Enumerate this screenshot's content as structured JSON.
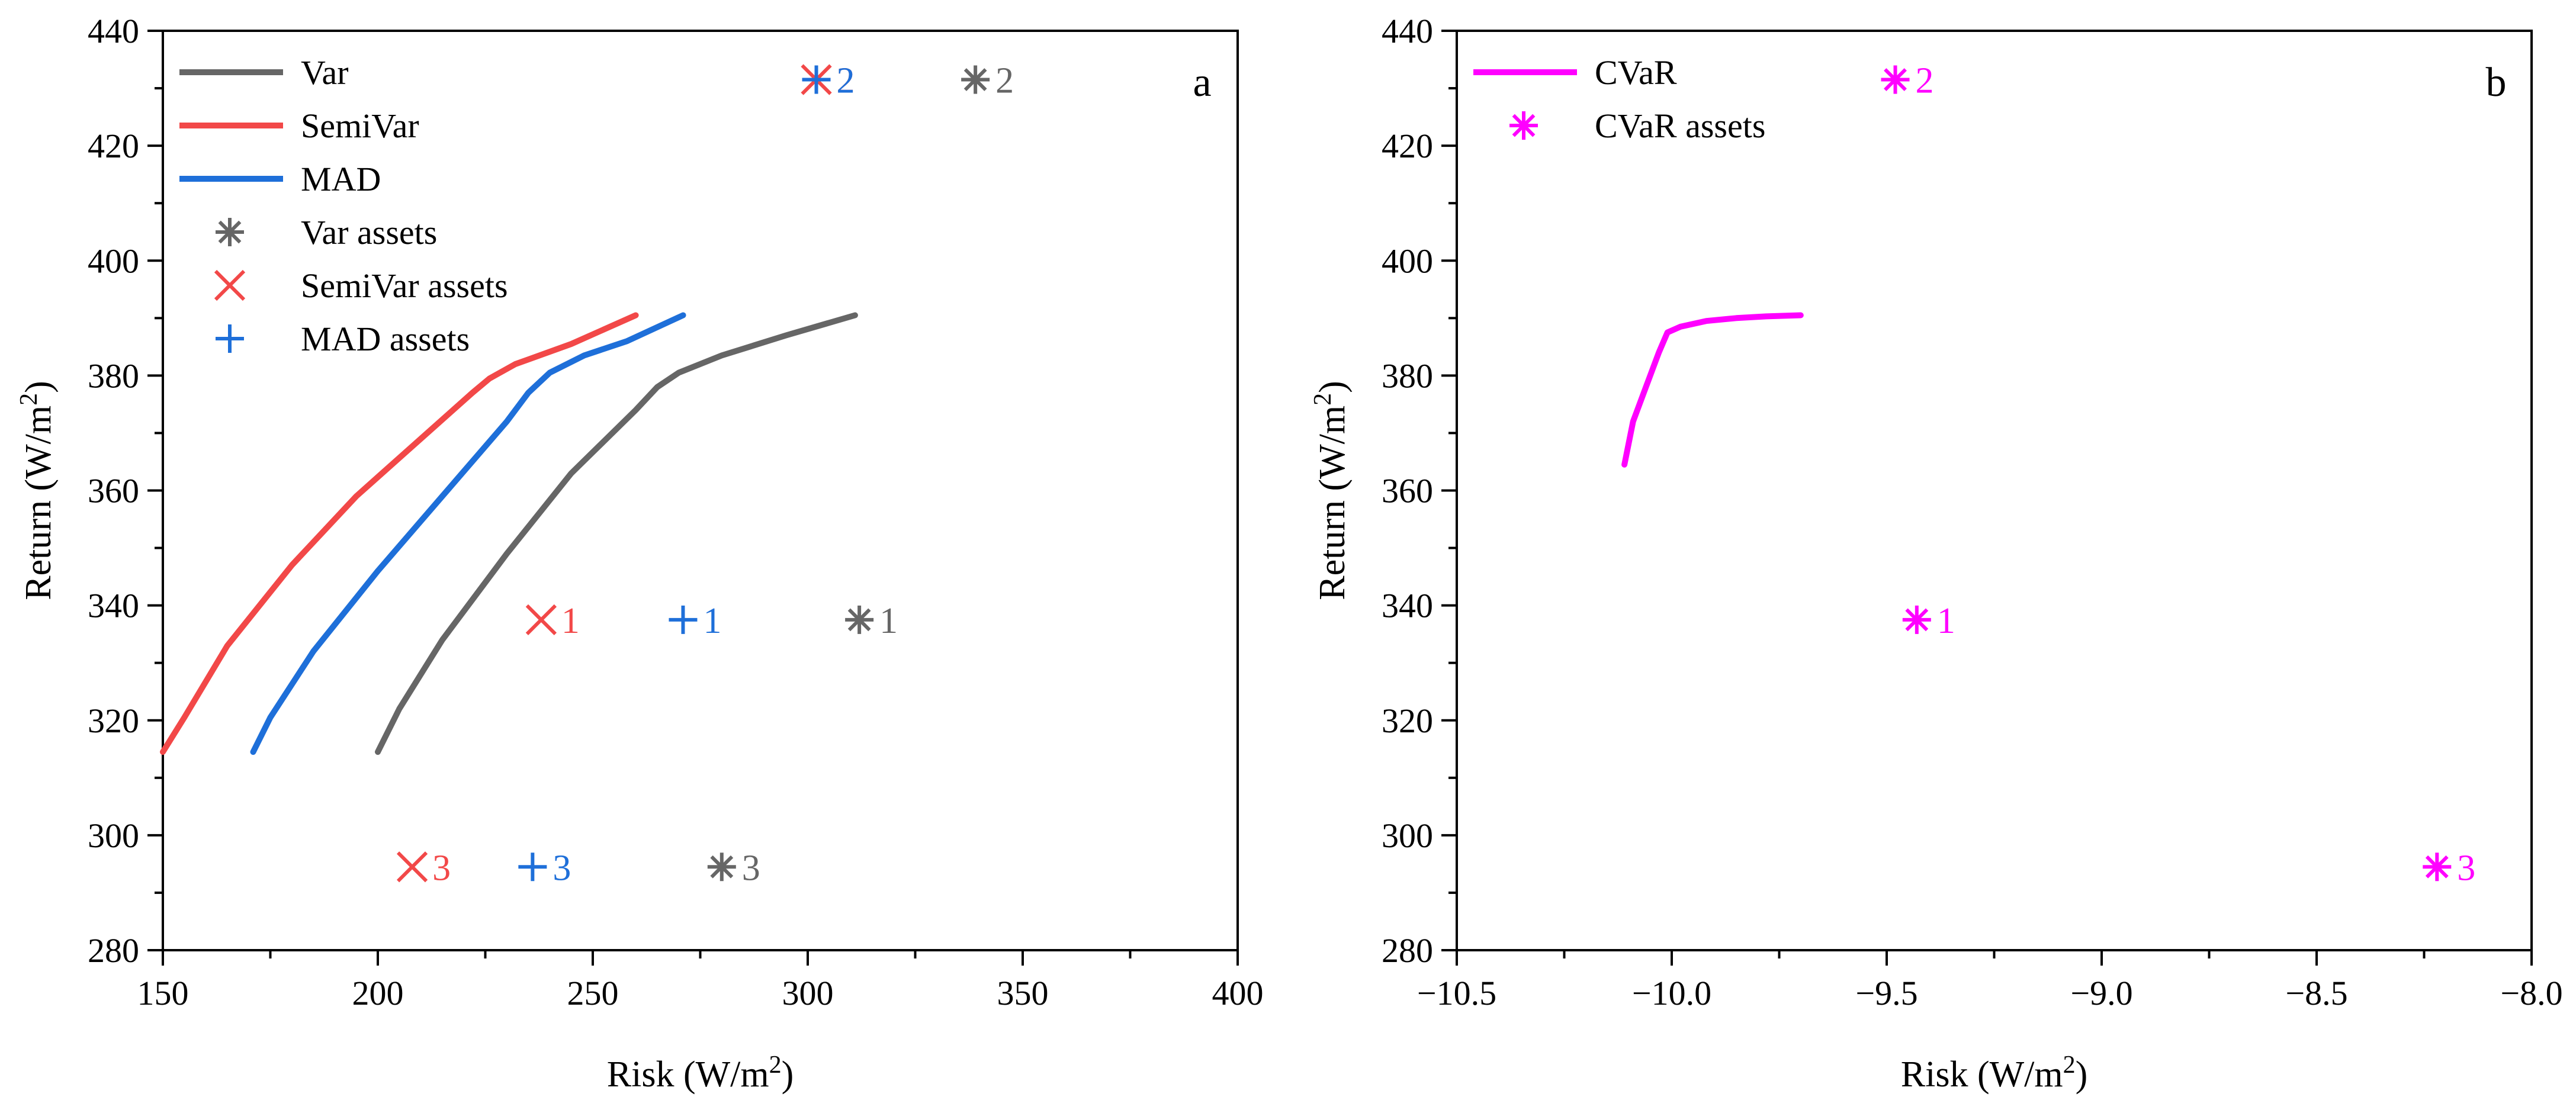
{
  "colors": {
    "var": "#666666",
    "semivar": "#F24848",
    "mad": "#1E6FD9",
    "cvar": "#FF00FF",
    "axis": "#000000"
  },
  "chart_data": [
    {
      "type": "line",
      "panel_label": "a",
      "xlabel_prefix": "Risk (W/m",
      "xlabel_sup": "2",
      "xlabel_suffix": ")",
      "ylabel_prefix": "Return (W/m",
      "ylabel_sup": "2",
      "ylabel_suffix": ")",
      "xlim": [
        150,
        400
      ],
      "ylim": [
        280,
        440
      ],
      "xticks": [
        150,
        200,
        250,
        300,
        350,
        400
      ],
      "yticks": [
        280,
        300,
        320,
        340,
        360,
        380,
        400,
        420,
        440
      ],
      "xtick_labels": [
        "150",
        "200",
        "250",
        "300",
        "350",
        "400"
      ],
      "ytick_labels": [
        "280",
        "300",
        "320",
        "340",
        "360",
        "380",
        "400",
        "420",
        "440"
      ],
      "legend_position": "top-left",
      "series": [
        {
          "name": "Var",
          "kind": "line",
          "color_key": "var",
          "points": [
            [
              200,
              314.5
            ],
            [
              205,
              322
            ],
            [
              215,
              334
            ],
            [
              230,
              349
            ],
            [
              245,
              363
            ],
            [
              260,
              374
            ],
            [
              265,
              378
            ],
            [
              270,
              380.5
            ],
            [
              280,
              383.5
            ],
            [
              295,
              387
            ],
            [
              311,
              390.5
            ]
          ]
        },
        {
          "name": "SemiVar",
          "kind": "line",
          "color_key": "semivar",
          "points": [
            [
              150,
              314.5
            ],
            [
              155,
              320.5
            ],
            [
              165,
              333
            ],
            [
              180,
              347
            ],
            [
              195,
              359
            ],
            [
              210,
              369
            ],
            [
              222,
              377
            ],
            [
              226,
              379.5
            ],
            [
              232,
              382
            ],
            [
              245,
              385.5
            ],
            [
              260,
              390.5
            ]
          ]
        },
        {
          "name": "MAD",
          "kind": "line",
          "color_key": "mad",
          "points": [
            [
              171,
              314.5
            ],
            [
              175,
              320.5
            ],
            [
              185,
              332
            ],
            [
              200,
              346
            ],
            [
              215,
              359
            ],
            [
              230,
              372
            ],
            [
              235,
              377
            ],
            [
              240,
              380.5
            ],
            [
              248,
              383.5
            ],
            [
              258,
              386
            ],
            [
              271,
              390.5
            ]
          ]
        },
        {
          "name": "Var assets",
          "kind": "asset",
          "marker": "asterisk",
          "color_key": "var",
          "points": [
            {
              "x": 312,
              "y": 337.5,
              "label": "1"
            },
            {
              "x": 339,
              "y": 431.5,
              "label": "2"
            },
            {
              "x": 280,
              "y": 294.5,
              "label": "3"
            }
          ]
        },
        {
          "name": "SemiVar assets",
          "kind": "asset",
          "marker": "x",
          "color_key": "semivar",
          "points": [
            {
              "x": 238,
              "y": 337.5,
              "label": "1"
            },
            {
              "x": 302,
              "y": 431.5,
              "label": "2"
            },
            {
              "x": 208,
              "y": 294.5,
              "label": "3"
            }
          ]
        },
        {
          "name": "MAD assets",
          "kind": "asset",
          "marker": "plus",
          "color_key": "mad",
          "points": [
            {
              "x": 271,
              "y": 337.5,
              "label": "1"
            },
            {
              "x": 302,
              "y": 431.5,
              "label": "2"
            },
            {
              "x": 236,
              "y": 294.5,
              "label": "3"
            }
          ]
        }
      ]
    },
    {
      "type": "line",
      "panel_label": "b",
      "xlabel_prefix": "Risk (W/m",
      "xlabel_sup": "2",
      "xlabel_suffix": ")",
      "ylabel_prefix": "Return (W/m",
      "ylabel_sup": "2",
      "ylabel_suffix": ")",
      "xlim": [
        -10.5,
        -8.0
      ],
      "ylim": [
        280,
        440
      ],
      "xticks": [
        -10.5,
        -10.0,
        -9.5,
        -9.0,
        -8.5,
        -8.0
      ],
      "yticks": [
        280,
        300,
        320,
        340,
        360,
        380,
        400,
        420,
        440
      ],
      "xtick_labels": [
        "−10.5",
        "−10.0",
        "−9.5",
        "−9.0",
        "−8.5",
        "−8.0"
      ],
      "ytick_labels": [
        "280",
        "300",
        "320",
        "340",
        "360",
        "380",
        "400",
        "420",
        "440"
      ],
      "legend_position": "top-left",
      "series": [
        {
          "name": "CVaR",
          "kind": "line",
          "color_key": "cvar",
          "points": [
            [
              -10.11,
              364.5
            ],
            [
              -10.09,
              372
            ],
            [
              -10.06,
              378
            ],
            [
              -10.03,
              384
            ],
            [
              -10.01,
              387.5
            ],
            [
              -9.98,
              388.5
            ],
            [
              -9.92,
              389.5
            ],
            [
              -9.85,
              390
            ],
            [
              -9.78,
              390.3
            ],
            [
              -9.7,
              390.5
            ]
          ]
        },
        {
          "name": "CVaR assets",
          "kind": "asset",
          "marker": "asterisk",
          "color_key": "cvar",
          "points": [
            {
              "x": -9.43,
              "y": 337.5,
              "label": "1"
            },
            {
              "x": -9.48,
              "y": 431.5,
              "label": "2"
            },
            {
              "x": -8.22,
              "y": 294.5,
              "label": "3"
            }
          ]
        }
      ]
    }
  ]
}
